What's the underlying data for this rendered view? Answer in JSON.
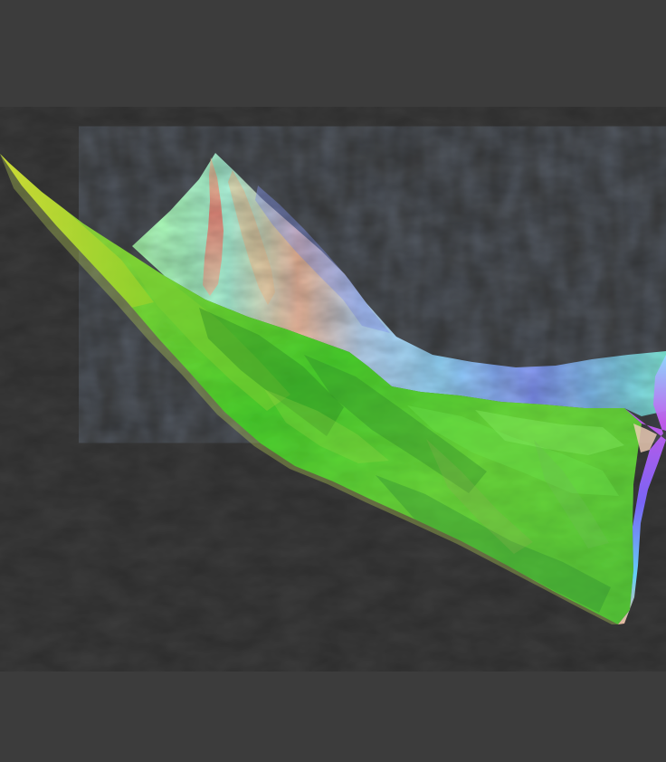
{
  "viewport": {
    "background_color": "#3c3c3c",
    "render_mode": "surface-normal-shading",
    "object": "terrain-mesh"
  },
  "colors": {
    "front_face_green": "#5ed62f",
    "front_face_dark": "#2f8a24",
    "left_edge_yellow": "#b7d32a",
    "back_slope_cyan": "#8ff0c8",
    "back_slope_blue": "#7f92ff",
    "ridge_red": "#f06a6a",
    "ridge_peach": "#f3b58f",
    "right_edge_magenta": "#c65cf0",
    "right_edge_purple": "#7a61ff"
  }
}
